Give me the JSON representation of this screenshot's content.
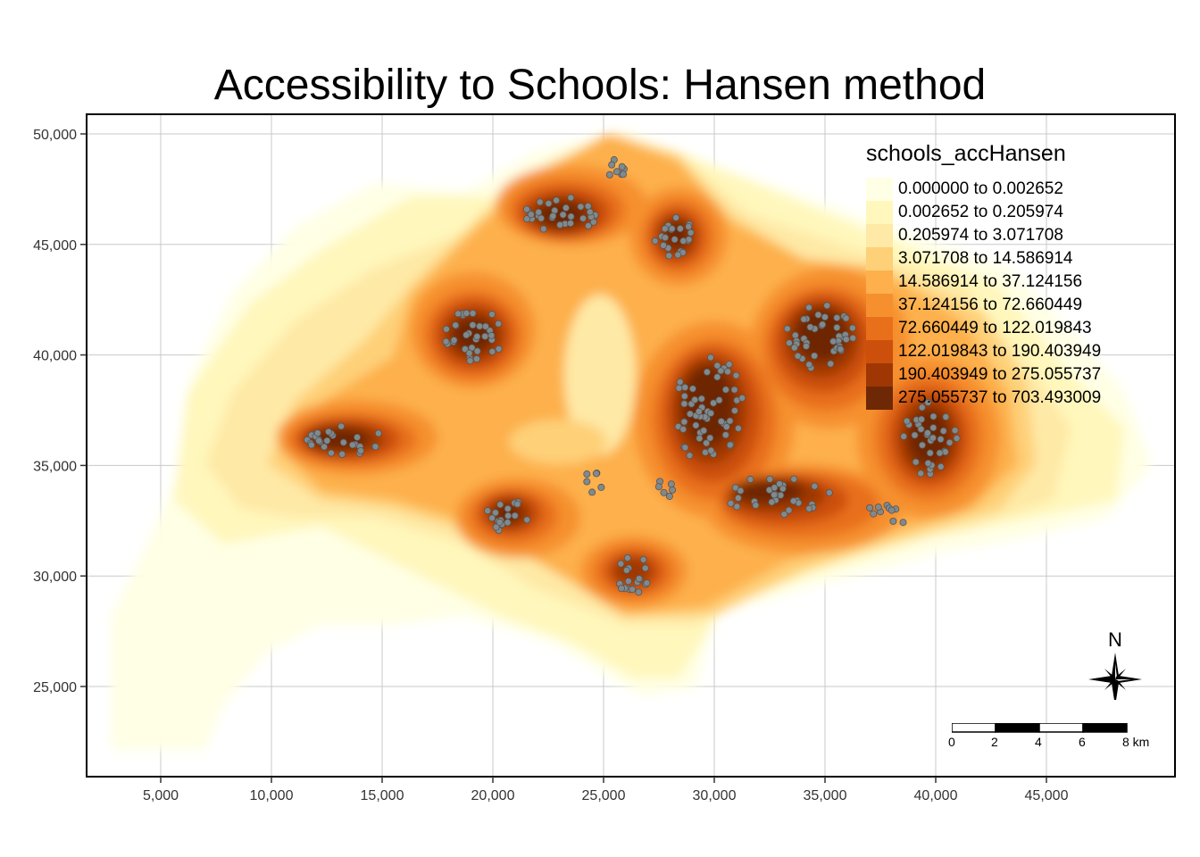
{
  "title": "Accessibility to Schools: Hansen method",
  "map": {
    "x_axis": {
      "tick_labels": [
        "5,000",
        "10,000",
        "15,000",
        "20,000",
        "25,000",
        "30,000",
        "35,000",
        "40,000",
        "45,000"
      ],
      "ticks": [
        5000,
        10000,
        15000,
        20000,
        25000,
        30000,
        35000,
        40000,
        45000
      ]
    },
    "y_axis": {
      "tick_labels": [
        "25,000",
        "30,000",
        "35,000",
        "40,000",
        "45,000",
        "50,000"
      ],
      "ticks": [
        25000,
        30000,
        35000,
        40000,
        45000,
        50000
      ]
    },
    "grid": true,
    "point_color": "#808a8e"
  },
  "legend": {
    "title": "schools_accHansen",
    "classes": [
      {
        "label": "0.000000 to 0.002652",
        "color": "#ffffe5"
      },
      {
        "label": "0.002652 to 0.205974",
        "color": "#fff7bc"
      },
      {
        "label": "0.205974 to 3.071708",
        "color": "#fee9a6"
      },
      {
        "label": "3.071708 to 14.586914",
        "color": "#fed078"
      },
      {
        "label": "14.586914 to 37.124156",
        "color": "#fdb04c"
      },
      {
        "label": "37.124156 to 72.660449",
        "color": "#f6902f"
      },
      {
        "label": "72.660449 to 122.019843",
        "color": "#e8701b"
      },
      {
        "label": "122.019843 to 190.403949",
        "color": "#cc500b"
      },
      {
        "label": "190.403949 to 275.055737",
        "color": "#9f3704"
      },
      {
        "label": "275.055737 to 703.493009",
        "color": "#6e2806"
      }
    ]
  },
  "north_arrow": {
    "label": "N"
  },
  "scale_bar": {
    "labels": [
      "0",
      "2",
      "4",
      "6",
      "8 km"
    ]
  }
}
